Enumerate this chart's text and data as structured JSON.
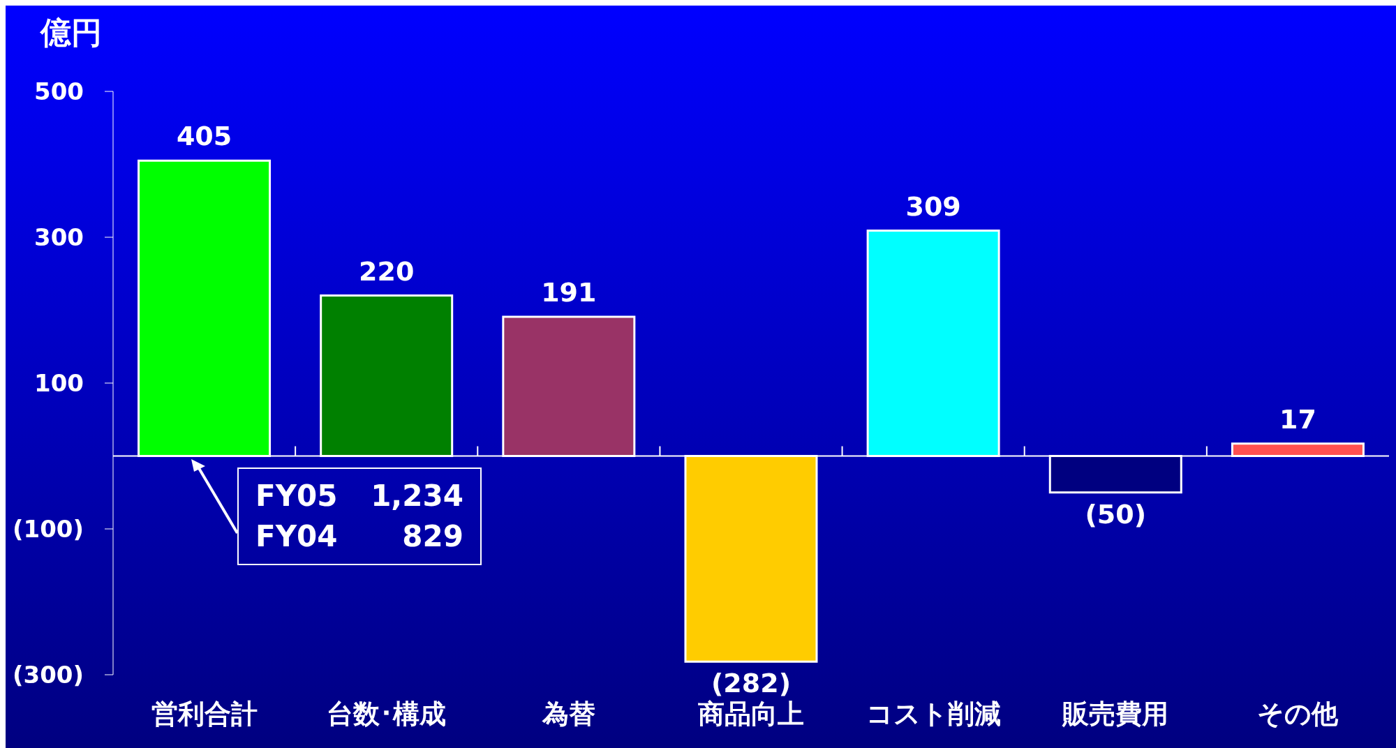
{
  "chart_data": {
    "type": "bar",
    "ylabel": "億円",
    "categories": [
      "営利合計",
      "台数･構成",
      "為替",
      "商品向上",
      "コスト削減",
      "販売費用",
      "その他"
    ],
    "values": [
      405,
      220,
      191,
      -282,
      309,
      -50,
      17
    ],
    "colors": [
      "#00ff00",
      "#008000",
      "#993366",
      "#ffcc00",
      "#00ffff",
      "#000080",
      "#ff5050"
    ],
    "value_labels": [
      "405",
      "220",
      "191",
      "(282)",
      "309",
      "(50)",
      "17"
    ],
    "ylim": [
      -300,
      500
    ],
    "yticks": [
      500,
      300,
      100,
      {
        "value": -100,
        "label": "(100)"
      },
      {
        "value": -300,
        "label": "(300)"
      }
    ],
    "annotations": [
      "FY05   1,234",
      "FY04   829"
    ],
    "grid": false,
    "legend": false
  }
}
